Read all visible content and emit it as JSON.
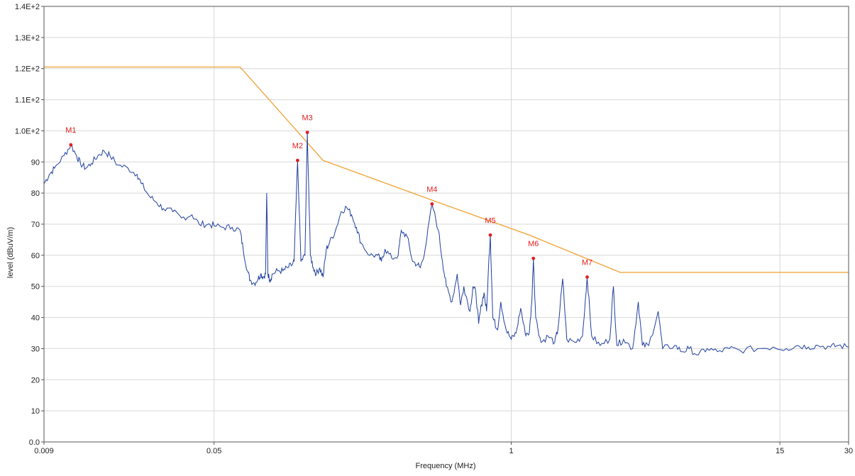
{
  "chart_data": {
    "type": "line",
    "xlabel": "Frequency (MHz)",
    "ylabel": "level (dBuV/m)",
    "x_scale": "log",
    "xlim": [
      0.009,
      30
    ],
    "ylim": [
      0,
      140
    ],
    "grid": true,
    "x_ticks": [
      {
        "value": 0.009,
        "label": "0.009"
      },
      {
        "value": 0.05,
        "label": "0.05"
      },
      {
        "value": 1,
        "label": "1"
      },
      {
        "value": 15,
        "label": "15"
      },
      {
        "value": 30,
        "label": "30"
      }
    ],
    "y_ticks": [
      {
        "value": 0,
        "label": "0.0"
      },
      {
        "value": 10,
        "label": "10"
      },
      {
        "value": 20,
        "label": "20"
      },
      {
        "value": 30,
        "label": "30"
      },
      {
        "value": 40,
        "label": "40"
      },
      {
        "value": 50,
        "label": "50"
      },
      {
        "value": 60,
        "label": "60"
      },
      {
        "value": 70,
        "label": "70"
      },
      {
        "value": 80,
        "label": "80"
      },
      {
        "value": 90,
        "label": "90"
      },
      {
        "value": 100,
        "label": "1.0E+2"
      },
      {
        "value": 110,
        "label": "1.1E+2"
      },
      {
        "value": 120,
        "label": "1.2E+2"
      },
      {
        "value": 130,
        "label": "1.3E+2"
      },
      {
        "value": 140,
        "label": "1.4E+2"
      }
    ],
    "colors": {
      "measurement": "#1f3f9e",
      "limit": "#f0a030",
      "markers": "#e02020",
      "grid": "#d8d8d8",
      "axis": "#555555"
    },
    "series": [
      {
        "role": "limit",
        "points": [
          [
            0.009,
            120.5
          ],
          [
            0.065,
            120.5
          ],
          [
            0.15,
            90.5
          ],
          [
            0.5,
            76.5
          ],
          [
            1.2,
            66.5
          ],
          [
            3,
            54.5
          ],
          [
            30,
            54.5
          ]
        ]
      },
      {
        "role": "measurement",
        "points": [
          [
            0.009,
            83
          ],
          [
            0.0095,
            86
          ],
          [
            0.01,
            88
          ],
          [
            0.011,
            92
          ],
          [
            0.0118,
            95.5
          ],
          [
            0.0125,
            92
          ],
          [
            0.013,
            89.5
          ],
          [
            0.0137,
            88
          ],
          [
            0.0145,
            89.5
          ],
          [
            0.0155,
            92
          ],
          [
            0.0165,
            93.5
          ],
          [
            0.0175,
            92
          ],
          [
            0.019,
            89
          ],
          [
            0.021,
            88
          ],
          [
            0.023,
            86
          ],
          [
            0.024,
            83
          ],
          [
            0.026,
            79
          ],
          [
            0.028,
            77
          ],
          [
            0.03,
            75
          ],
          [
            0.033,
            74
          ],
          [
            0.036,
            72
          ],
          [
            0.04,
            73
          ],
          [
            0.043,
            70
          ],
          [
            0.047,
            70
          ],
          [
            0.05,
            69.5
          ],
          [
            0.055,
            69
          ],
          [
            0.06,
            69
          ],
          [
            0.065,
            68
          ],
          [
            0.067,
            62
          ],
          [
            0.07,
            55
          ],
          [
            0.072,
            52
          ],
          [
            0.075,
            51
          ],
          [
            0.078,
            52.5
          ],
          [
            0.08,
            54
          ],
          [
            0.082,
            53
          ],
          [
            0.084,
            54
          ],
          [
            0.085,
            80
          ],
          [
            0.086,
            54
          ],
          [
            0.088,
            52
          ],
          [
            0.09,
            54
          ],
          [
            0.095,
            55
          ],
          [
            0.1,
            55
          ],
          [
            0.105,
            56
          ],
          [
            0.11,
            57
          ],
          [
            0.112,
            58
          ],
          [
            0.116,
            90.5
          ],
          [
            0.12,
            58
          ],
          [
            0.125,
            60
          ],
          [
            0.128,
            99.5
          ],
          [
            0.132,
            60
          ],
          [
            0.136,
            56
          ],
          [
            0.14,
            54
          ],
          [
            0.145,
            56
          ],
          [
            0.15,
            53
          ],
          [
            0.155,
            62
          ],
          [
            0.16,
            64
          ],
          [
            0.17,
            68
          ],
          [
            0.18,
            74
          ],
          [
            0.19,
            75.5
          ],
          [
            0.2,
            73
          ],
          [
            0.21,
            69
          ],
          [
            0.22,
            64
          ],
          [
            0.24,
            60
          ],
          [
            0.26,
            60
          ],
          [
            0.27,
            58
          ],
          [
            0.28,
            62
          ],
          [
            0.3,
            59
          ],
          [
            0.32,
            60
          ],
          [
            0.33,
            68
          ],
          [
            0.35,
            66
          ],
          [
            0.37,
            58
          ],
          [
            0.39,
            57
          ],
          [
            0.4,
            56
          ],
          [
            0.42,
            62
          ],
          [
            0.45,
            76.5
          ],
          [
            0.48,
            68
          ],
          [
            0.5,
            58
          ],
          [
            0.52,
            50
          ],
          [
            0.55,
            45
          ],
          [
            0.58,
            54
          ],
          [
            0.6,
            44
          ],
          [
            0.62,
            50
          ],
          [
            0.66,
            42
          ],
          [
            0.68,
            50
          ],
          [
            0.7,
            48
          ],
          [
            0.72,
            38
          ],
          [
            0.74,
            44
          ],
          [
            0.76,
            48
          ],
          [
            0.78,
            42
          ],
          [
            0.8,
            60
          ],
          [
            0.81,
            66.5
          ],
          [
            0.83,
            40
          ],
          [
            0.87,
            36
          ],
          [
            0.9,
            45
          ],
          [
            0.95,
            36
          ],
          [
            1.0,
            33
          ],
          [
            1.05,
            35
          ],
          [
            1.1,
            43
          ],
          [
            1.15,
            35
          ],
          [
            1.2,
            35
          ],
          [
            1.23,
            45
          ],
          [
            1.25,
            59
          ],
          [
            1.28,
            40
          ],
          [
            1.35,
            32
          ],
          [
            1.45,
            34
          ],
          [
            1.55,
            32
          ],
          [
            1.6,
            36
          ],
          [
            1.68,
            52.5
          ],
          [
            1.75,
            33
          ],
          [
            1.9,
            32
          ],
          [
            2.05,
            34
          ],
          [
            2.15,
            53
          ],
          [
            2.25,
            34
          ],
          [
            2.45,
            31
          ],
          [
            2.7,
            33
          ],
          [
            2.8,
            50
          ],
          [
            2.9,
            31
          ],
          [
            3.1,
            33
          ],
          [
            3.4,
            30
          ],
          [
            3.6,
            45
          ],
          [
            3.75,
            31
          ],
          [
            4.0,
            31
          ],
          [
            4.4,
            42
          ],
          [
            4.6,
            30
          ],
          [
            5.2,
            31
          ],
          [
            5.6,
            29
          ],
          [
            6.0,
            30
          ],
          [
            6.6,
            28
          ],
          [
            7.2,
            30
          ],
          [
            8.0,
            29
          ],
          [
            9.0,
            30
          ],
          [
            10,
            29.5
          ],
          [
            12,
            30
          ],
          [
            14,
            30.5
          ],
          [
            16,
            30
          ],
          [
            18,
            31
          ],
          [
            20,
            30.5
          ],
          [
            22,
            31
          ],
          [
            25,
            30.5
          ],
          [
            27,
            31
          ],
          [
            30,
            30.5
          ]
        ]
      }
    ],
    "markers": [
      {
        "label": "M1",
        "x": 0.0118,
        "y": 95.5
      },
      {
        "label": "M2",
        "x": 0.116,
        "y": 90.5
      },
      {
        "label": "M3",
        "x": 0.128,
        "y": 99.5
      },
      {
        "label": "M4",
        "x": 0.45,
        "y": 76.5
      },
      {
        "label": "M5",
        "x": 0.81,
        "y": 66.5
      },
      {
        "label": "M6",
        "x": 1.25,
        "y": 59
      },
      {
        "label": "M7",
        "x": 2.15,
        "y": 53
      }
    ]
  }
}
